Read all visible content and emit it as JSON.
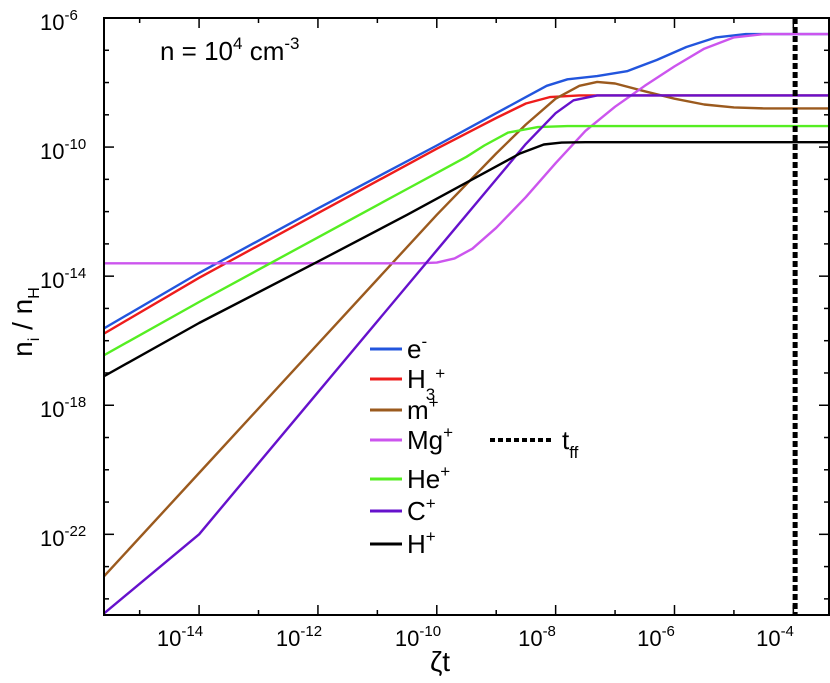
{
  "chart_data": {
    "type": "line",
    "title": "",
    "xlabel": "ζt",
    "ylabel": "n_i / n_H",
    "xscale": "log",
    "yscale": "log",
    "xlim_log10": [
      -15.6,
      -3.4
    ],
    "ylim_log10": [
      -24.5,
      -6
    ],
    "x_tick_log10": [
      -14,
      -12,
      -10,
      -8,
      -6,
      -4
    ],
    "y_tick_log10": [
      -22,
      -18,
      -14,
      -10,
      -6
    ],
    "x_tick_labels": [
      {
        "base": "10",
        "exp": "-14"
      },
      {
        "base": "10",
        "exp": "-12"
      },
      {
        "base": "10",
        "exp": "-10"
      },
      {
        "base": "10",
        "exp": "-8"
      },
      {
        "base": "10",
        "exp": "-6"
      },
      {
        "base": "10",
        "exp": "-4"
      }
    ],
    "y_tick_labels": [
      {
        "base": "10",
        "exp": "-22"
      },
      {
        "base": "10",
        "exp": "-18"
      },
      {
        "base": "10",
        "exp": "-14"
      },
      {
        "base": "10",
        "exp": "-10"
      },
      {
        "base": "10",
        "exp": "-6"
      }
    ],
    "axis_labels": {
      "x_main": "ζt",
      "y_n": "n",
      "y_i": "i",
      "y_slash": " / n",
      "y_H": "H"
    },
    "annotation": {
      "prefix": "n = 10",
      "exp": "4",
      "unit": " cm",
      "unit_exp": "-3"
    },
    "tff": {
      "x_log10": -3.97,
      "label_main": "t",
      "label_sub": "ff"
    },
    "series": [
      {
        "name": "e⁻",
        "legend_main": "e",
        "legend_sup": "-",
        "legend_sub": "",
        "color": "#2255dd",
        "points": [
          [
            -15.6,
            -15.62
          ],
          [
            -14,
            -13.9
          ],
          [
            -12,
            -11.9
          ],
          [
            -10,
            -9.95
          ],
          [
            -9,
            -8.95
          ],
          [
            -8.5,
            -8.45
          ],
          [
            -8.15,
            -8.1
          ],
          [
            -7.8,
            -7.9
          ],
          [
            -7.3,
            -7.8
          ],
          [
            -6.8,
            -7.65
          ],
          [
            -6.3,
            -7.3
          ],
          [
            -5.8,
            -6.9
          ],
          [
            -5.3,
            -6.6
          ],
          [
            -4.8,
            -6.5
          ],
          [
            -4.3,
            -6.5
          ],
          [
            -3.4,
            -6.5
          ]
        ]
      },
      {
        "name": "H₃⁺",
        "legend_main": "H",
        "legend_sup": "+",
        "legend_sub": "3",
        "color": "#ee1c1c",
        "points": [
          [
            -15.6,
            -15.78
          ],
          [
            -14,
            -14.05
          ],
          [
            -12,
            -12.05
          ],
          [
            -10,
            -10.05
          ],
          [
            -9,
            -9.1
          ],
          [
            -8.5,
            -8.65
          ],
          [
            -8.1,
            -8.45
          ],
          [
            -7.6,
            -8.4
          ],
          [
            -3.4,
            -8.4
          ]
        ]
      },
      {
        "name": "m⁺",
        "legend_main": "m",
        "legend_sup": "+",
        "legend_sub": "",
        "color": "#9b5a1e",
        "points": [
          [
            -15.6,
            -23.3
          ],
          [
            -14,
            -20.1
          ],
          [
            -12,
            -16.1
          ],
          [
            -10,
            -12.1
          ],
          [
            -9,
            -10.2
          ],
          [
            -8.5,
            -9.3
          ],
          [
            -8,
            -8.5
          ],
          [
            -7.6,
            -8.1
          ],
          [
            -7.3,
            -7.98
          ],
          [
            -7.0,
            -8.03
          ],
          [
            -6.5,
            -8.27
          ],
          [
            -6.0,
            -8.5
          ],
          [
            -5.5,
            -8.68
          ],
          [
            -5.0,
            -8.77
          ],
          [
            -4.5,
            -8.8
          ],
          [
            -3.4,
            -8.8
          ]
        ]
      },
      {
        "name": "Mg⁺",
        "legend_main": "Mg",
        "legend_sup": "+",
        "legend_sub": "",
        "color": "#cc55ee",
        "points": [
          [
            -15.6,
            -13.6
          ],
          [
            -11,
            -13.6
          ],
          [
            -10.3,
            -13.6
          ],
          [
            -10,
            -13.58
          ],
          [
            -9.7,
            -13.45
          ],
          [
            -9.4,
            -13.15
          ],
          [
            -9.0,
            -12.5
          ],
          [
            -8.5,
            -11.55
          ],
          [
            -8.0,
            -10.5
          ],
          [
            -7.5,
            -9.5
          ],
          [
            -7.0,
            -8.75
          ],
          [
            -6.5,
            -8.1
          ],
          [
            -6.0,
            -7.5
          ],
          [
            -5.5,
            -6.95
          ],
          [
            -5.0,
            -6.6
          ],
          [
            -4.5,
            -6.5
          ],
          [
            -3.4,
            -6.5
          ]
        ]
      },
      {
        "name": "He⁺",
        "legend_main": "He",
        "legend_sup": "+",
        "legend_sub": "",
        "color": "#55ee22",
        "points": [
          [
            -15.6,
            -16.45
          ],
          [
            -14,
            -14.8
          ],
          [
            -12,
            -12.8
          ],
          [
            -10.5,
            -11.3
          ],
          [
            -10,
            -10.8
          ],
          [
            -9.5,
            -10.3
          ],
          [
            -9.2,
            -9.95
          ],
          [
            -8.8,
            -9.55
          ],
          [
            -8.3,
            -9.38
          ],
          [
            -7.8,
            -9.35
          ],
          [
            -3.4,
            -9.35
          ]
        ]
      },
      {
        "name": "C⁺",
        "legend_main": "C",
        "legend_sup": "+",
        "legend_sub": "",
        "color": "#6611cc",
        "points": [
          [
            -15.6,
            -24.45
          ],
          [
            -14,
            -22.0
          ],
          [
            -12,
            -17.6
          ],
          [
            -10,
            -13.2
          ],
          [
            -9,
            -11.0
          ],
          [
            -8.5,
            -9.9
          ],
          [
            -8.0,
            -8.95
          ],
          [
            -7.7,
            -8.55
          ],
          [
            -7.3,
            -8.4
          ],
          [
            -3.4,
            -8.4
          ]
        ]
      },
      {
        "name": "H⁺",
        "legend_main": "H",
        "legend_sup": "+",
        "legend_sub": "",
        "color": "#000000",
        "points": [
          [
            -15.6,
            -17.1
          ],
          [
            -14,
            -15.45
          ],
          [
            -12,
            -13.55
          ],
          [
            -10.5,
            -12.1
          ],
          [
            -9.5,
            -11.1
          ],
          [
            -9.0,
            -10.6
          ],
          [
            -8.6,
            -10.2
          ],
          [
            -8.2,
            -9.92
          ],
          [
            -7.9,
            -9.86
          ],
          [
            -7.5,
            -9.85
          ],
          [
            -3.4,
            -9.85
          ]
        ]
      }
    ]
  }
}
